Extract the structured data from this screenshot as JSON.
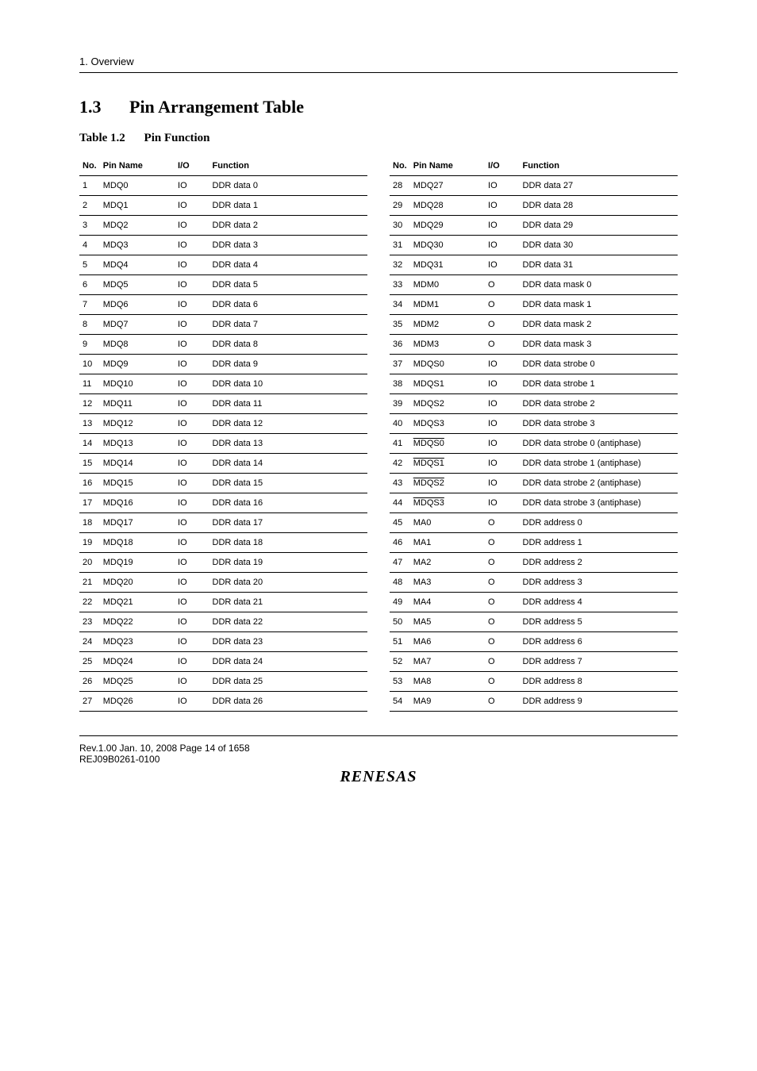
{
  "document": {
    "overview_text": "1.  Overview",
    "section_number": "1.3",
    "section_title": "Pin Arrangement Table",
    "table_label": "Table 1.2",
    "table_name": "Pin Function",
    "footer_line1": "Rev.1.00  Jan. 10, 2008  Page 14 of 1658",
    "footer_line2": "REJ09B0261-0100",
    "company_logo_text": "RENESAS"
  },
  "columns": {
    "no": "No.",
    "pin": "Pin Name",
    "io": "I/O",
    "fn": "Function"
  },
  "left_rows": [
    {
      "no": "1",
      "pin": "MDQ0",
      "io": "IO",
      "fn": "DDR data 0"
    },
    {
      "no": "2",
      "pin": "MDQ1",
      "io": "IO",
      "fn": "DDR data 1"
    },
    {
      "no": "3",
      "pin": "MDQ2",
      "io": "IO",
      "fn": "DDR data 2"
    },
    {
      "no": "4",
      "pin": "MDQ3",
      "io": "IO",
      "fn": "DDR data 3"
    },
    {
      "no": "5",
      "pin": "MDQ4",
      "io": "IO",
      "fn": "DDR data 4"
    },
    {
      "no": "6",
      "pin": "MDQ5",
      "io": "IO",
      "fn": "DDR data 5"
    },
    {
      "no": "7",
      "pin": "MDQ6",
      "io": "IO",
      "fn": "DDR data 6"
    },
    {
      "no": "8",
      "pin": "MDQ7",
      "io": "IO",
      "fn": "DDR data 7"
    },
    {
      "no": "9",
      "pin": "MDQ8",
      "io": "IO",
      "fn": "DDR data 8"
    },
    {
      "no": "10",
      "pin": "MDQ9",
      "io": "IO",
      "fn": "DDR data 9"
    },
    {
      "no": "11",
      "pin": "MDQ10",
      "io": "IO",
      "fn": "DDR data 10"
    },
    {
      "no": "12",
      "pin": "MDQ11",
      "io": "IO",
      "fn": "DDR data 11"
    },
    {
      "no": "13",
      "pin": "MDQ12",
      "io": "IO",
      "fn": "DDR data 12"
    },
    {
      "no": "14",
      "pin": "MDQ13",
      "io": "IO",
      "fn": "DDR data 13"
    },
    {
      "no": "15",
      "pin": "MDQ14",
      "io": "IO",
      "fn": "DDR data 14"
    },
    {
      "no": "16",
      "pin": "MDQ15",
      "io": "IO",
      "fn": "DDR data 15"
    },
    {
      "no": "17",
      "pin": "MDQ16",
      "io": "IO",
      "fn": "DDR data 16"
    },
    {
      "no": "18",
      "pin": "MDQ17",
      "io": "IO",
      "fn": "DDR data 17"
    },
    {
      "no": "19",
      "pin": "MDQ18",
      "io": "IO",
      "fn": "DDR data 18"
    },
    {
      "no": "20",
      "pin": "MDQ19",
      "io": "IO",
      "fn": "DDR data 19"
    },
    {
      "no": "21",
      "pin": "MDQ20",
      "io": "IO",
      "fn": "DDR data 20"
    },
    {
      "no": "22",
      "pin": "MDQ21",
      "io": "IO",
      "fn": "DDR data 21"
    },
    {
      "no": "23",
      "pin": "MDQ22",
      "io": "IO",
      "fn": "DDR data 22"
    },
    {
      "no": "24",
      "pin": "MDQ23",
      "io": "IO",
      "fn": "DDR data 23"
    },
    {
      "no": "25",
      "pin": "MDQ24",
      "io": "IO",
      "fn": "DDR data 24"
    },
    {
      "no": "26",
      "pin": "MDQ25",
      "io": "IO",
      "fn": "DDR data 25"
    },
    {
      "no": "27",
      "pin": "MDQ26",
      "io": "IO",
      "fn": "DDR data 26"
    }
  ],
  "right_rows": [
    {
      "no": "28",
      "pin": "MDQ27",
      "io": "IO",
      "fn": "DDR data 27"
    },
    {
      "no": "29",
      "pin": "MDQ28",
      "io": "IO",
      "fn": "DDR data 28"
    },
    {
      "no": "30",
      "pin": "MDQ29",
      "io": "IO",
      "fn": "DDR data 29"
    },
    {
      "no": "31",
      "pin": "MDQ30",
      "io": "IO",
      "fn": "DDR data 30"
    },
    {
      "no": "32",
      "pin": "MDQ31",
      "io": "IO",
      "fn": "DDR data 31"
    },
    {
      "no": "33",
      "pin": "MDM0",
      "io": "O",
      "fn": "DDR data mask 0"
    },
    {
      "no": "34",
      "pin": "MDM1",
      "io": "O",
      "fn": "DDR data mask 1"
    },
    {
      "no": "35",
      "pin": "MDM2",
      "io": "O",
      "fn": "DDR data mask 2"
    },
    {
      "no": "36",
      "pin": "MDM3",
      "io": "O",
      "fn": "DDR data mask 3"
    },
    {
      "no": "37",
      "pin": "MDQS0",
      "io": "IO",
      "fn": "DDR data strobe 0"
    },
    {
      "no": "38",
      "pin": "MDQS1",
      "io": "IO",
      "fn": "DDR data strobe 1"
    },
    {
      "no": "39",
      "pin": "MDQS2",
      "io": "IO",
      "fn": "DDR data strobe 2"
    },
    {
      "no": "40",
      "pin": "MDQS3",
      "io": "IO",
      "fn": "DDR data strobe 3"
    },
    {
      "no": "41",
      "pin": "MDQS0",
      "pin_overline": true,
      "io": "IO",
      "fn": "DDR data strobe 0 (antiphase)"
    },
    {
      "no": "42",
      "pin": "MDQS1",
      "pin_overline": true,
      "io": "IO",
      "fn": "DDR data strobe 1 (antiphase)"
    },
    {
      "no": "43",
      "pin": "MDQS2",
      "pin_overline": true,
      "io": "IO",
      "fn": "DDR data strobe 2 (antiphase)"
    },
    {
      "no": "44",
      "pin": "MDQS3",
      "pin_overline": true,
      "io": "IO",
      "fn": "DDR data strobe 3 (antiphase)"
    },
    {
      "no": "45",
      "pin": "MA0",
      "io": "O",
      "fn": "DDR address 0"
    },
    {
      "no": "46",
      "pin": "MA1",
      "io": "O",
      "fn": "DDR address 1"
    },
    {
      "no": "47",
      "pin": "MA2",
      "io": "O",
      "fn": "DDR address 2"
    },
    {
      "no": "48",
      "pin": "MA3",
      "io": "O",
      "fn": "DDR address 3"
    },
    {
      "no": "49",
      "pin": "MA4",
      "io": "O",
      "fn": "DDR address 4"
    },
    {
      "no": "50",
      "pin": "MA5",
      "io": "O",
      "fn": "DDR address 5"
    },
    {
      "no": "51",
      "pin": "MA6",
      "io": "O",
      "fn": "DDR address 6"
    },
    {
      "no": "52",
      "pin": "MA7",
      "io": "O",
      "fn": "DDR address 7"
    },
    {
      "no": "53",
      "pin": "MA8",
      "io": "O",
      "fn": "DDR address 8"
    },
    {
      "no": "54",
      "pin": "MA9",
      "io": "O",
      "fn": "DDR address 9"
    }
  ]
}
